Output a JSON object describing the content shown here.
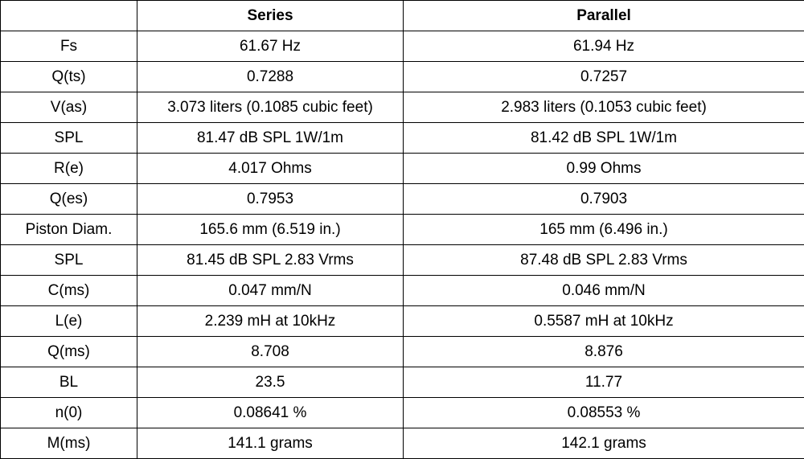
{
  "table": {
    "header": {
      "corner": "",
      "series": "Series",
      "parallel": "Parallel"
    },
    "rows": [
      {
        "label": "Fs",
        "series": "61.67 Hz",
        "parallel": "61.94 Hz"
      },
      {
        "label": "Q(ts)",
        "series": "0.7288",
        "parallel": "0.7257"
      },
      {
        "label": "V(as)",
        "series": "3.073 liters (0.1085 cubic feet)",
        "parallel": "2.983 liters (0.1053 cubic feet)"
      },
      {
        "label": "SPL",
        "series": "81.47 dB SPL 1W/1m",
        "parallel": "81.42 dB SPL 1W/1m"
      },
      {
        "label": "R(e)",
        "series": "4.017 Ohms",
        "parallel": "0.99 Ohms"
      },
      {
        "label": "Q(es)",
        "series": "0.7953",
        "parallel": "0.7903"
      },
      {
        "label": "Piston Diam.",
        "series": "165.6 mm (6.519 in.)",
        "parallel": "165 mm (6.496 in.)"
      },
      {
        "label": "SPL",
        "series": "81.45 dB SPL 2.83 Vrms",
        "parallel": "87.48 dB SPL 2.83 Vrms"
      },
      {
        "label": "C(ms)",
        "series": "0.047 mm/N",
        "parallel": "0.046 mm/N"
      },
      {
        "label": "L(e)",
        "series": "2.239 mH at 10kHz",
        "parallel": "0.5587 mH at 10kHz"
      },
      {
        "label": "Q(ms)",
        "series": "8.708",
        "parallel": "8.876"
      },
      {
        "label": "BL",
        "series": "23.5",
        "parallel": "11.77"
      },
      {
        "label": "n(0)",
        "series": "0.08641 %",
        "parallel": "0.08553 %"
      },
      {
        "label": "M(ms)",
        "series": "141.1 grams",
        "parallel": "142.1 grams"
      }
    ]
  }
}
